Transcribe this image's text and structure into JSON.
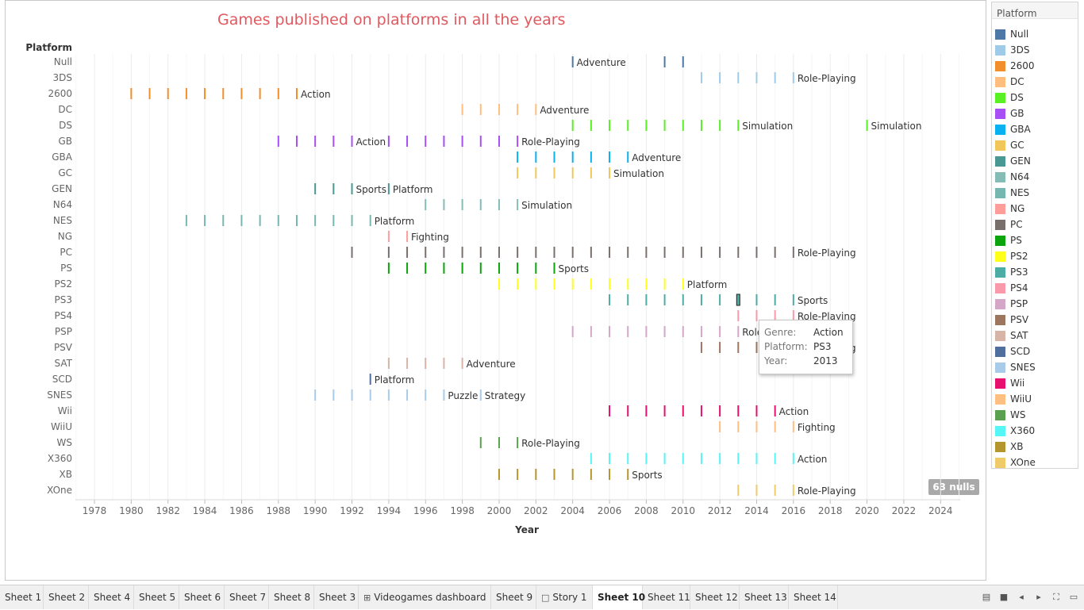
{
  "chart_data": {
    "type": "gantt-ticks",
    "title": "Games published on platforms in all the years",
    "ylabel": "Platform",
    "xlabel": "Year",
    "x_ticks": [
      1978,
      1980,
      1982,
      1984,
      1986,
      1988,
      1990,
      1992,
      1994,
      1996,
      1998,
      2000,
      2002,
      2004,
      2006,
      2008,
      2010,
      2012,
      2014,
      2016,
      2018,
      2020,
      2022,
      2024
    ],
    "xlim": [
      1977,
      2025
    ],
    "grid": "vertical",
    "platforms": [
      {
        "name": "Null",
        "color": "#4e79a7",
        "years": [
          2004,
          2009,
          2010
        ],
        "labels": [
          {
            "year": 2004,
            "text": "Adventure"
          }
        ]
      },
      {
        "name": "3DS",
        "color": "#a0cbe8",
        "years": [
          2011,
          2012,
          2013,
          2014,
          2015,
          2016
        ],
        "labels": [
          {
            "year": 2016,
            "text": "Role-Playing"
          }
        ]
      },
      {
        "name": "2600",
        "color": "#f28e2b",
        "years": [
          1980,
          1981,
          1982,
          1983,
          1984,
          1985,
          1986,
          1987,
          1988,
          1989
        ],
        "labels": [
          {
            "year": 1989,
            "text": "Action"
          }
        ]
      },
      {
        "name": "DC",
        "color": "#ffbe7d",
        "years": [
          1998,
          1999,
          2000,
          2001,
          2002
        ],
        "labels": [
          {
            "year": 2002,
            "text": "Adventure"
          }
        ]
      },
      {
        "name": "DS",
        "color": "#59f024",
        "years": [
          2004,
          2005,
          2006,
          2007,
          2008,
          2009,
          2010,
          2011,
          2012,
          2013,
          2020
        ],
        "labels": [
          {
            "year": 2013,
            "text": "Simulation"
          },
          {
            "year": 2020,
            "text": "Simulation"
          }
        ]
      },
      {
        "name": "GB",
        "color": "#a74ef5",
        "years": [
          1988,
          1989,
          1990,
          1991,
          1992,
          1994,
          1995,
          1996,
          1997,
          1998,
          1999,
          2000,
          2001
        ],
        "labels": [
          {
            "year": 1992,
            "text": "Action"
          },
          {
            "year": 2001,
            "text": "Role-Playing"
          }
        ]
      },
      {
        "name": "GBA",
        "color": "#0ab1f0",
        "years": [
          2001,
          2002,
          2003,
          2004,
          2005,
          2006,
          2007
        ],
        "labels": [
          {
            "year": 2007,
            "text": "Adventure"
          }
        ]
      },
      {
        "name": "GC",
        "color": "#f1c75a",
        "years": [
          2001,
          2002,
          2003,
          2004,
          2005,
          2006
        ],
        "labels": [
          {
            "year": 2006,
            "text": "Simulation"
          }
        ]
      },
      {
        "name": "GEN",
        "color": "#499894",
        "years": [
          1990,
          1991,
          1992,
          1994
        ],
        "labels": [
          {
            "year": 1992,
            "text": "Sports"
          },
          {
            "year": 1994,
            "text": "Platform"
          }
        ]
      },
      {
        "name": "N64",
        "color": "#86bcb6",
        "years": [
          1996,
          1997,
          1998,
          1999,
          2000,
          2001
        ],
        "labels": [
          {
            "year": 2001,
            "text": "Simulation"
          }
        ]
      },
      {
        "name": "NES",
        "color": "#76b7b2",
        "years": [
          1983,
          1984,
          1985,
          1986,
          1987,
          1988,
          1989,
          1990,
          1991,
          1992,
          1993
        ],
        "labels": [
          {
            "year": 1993,
            "text": "Platform"
          }
        ]
      },
      {
        "name": "NG",
        "color": "#ff9d9a",
        "years": [
          1994,
          1995
        ],
        "labels": [
          {
            "year": 1995,
            "text": "Fighting"
          }
        ]
      },
      {
        "name": "PC",
        "color": "#79706e",
        "years": [
          1992,
          1994,
          1995,
          1996,
          1997,
          1998,
          1999,
          2000,
          2001,
          2002,
          2003,
          2004,
          2005,
          2006,
          2007,
          2008,
          2009,
          2010,
          2011,
          2012,
          2013,
          2014,
          2015,
          2016
        ],
        "labels": [
          {
            "year": 2016,
            "text": "Role-Playing"
          }
        ]
      },
      {
        "name": "PS",
        "color": "#0ba40b",
        "years": [
          1994,
          1995,
          1996,
          1997,
          1998,
          1999,
          2000,
          2001,
          2002,
          2003
        ],
        "labels": [
          {
            "year": 2003,
            "text": "Sports"
          }
        ]
      },
      {
        "name": "PS2",
        "color": "#ffff1a",
        "years": [
          2000,
          2001,
          2002,
          2003,
          2004,
          2005,
          2006,
          2007,
          2008,
          2009,
          2010
        ],
        "labels": [
          {
            "year": 2010,
            "text": "Platform"
          }
        ]
      },
      {
        "name": "PS3",
        "color": "#4cada6",
        "years": [
          2006,
          2007,
          2008,
          2009,
          2010,
          2011,
          2012,
          2013,
          2014,
          2015,
          2016
        ],
        "labels": [
          {
            "year": 2016,
            "text": "Sports"
          }
        ]
      },
      {
        "name": "PS4",
        "color": "#f999a9",
        "years": [
          2013,
          2014,
          2015,
          2016
        ],
        "labels": [
          {
            "year": 2016,
            "text": "Role-Playing"
          }
        ]
      },
      {
        "name": "PSP",
        "color": "#d4a6c8",
        "years": [
          2004,
          2005,
          2006,
          2007,
          2008,
          2009,
          2010,
          2011,
          2012,
          2013
        ],
        "labels": [
          {
            "year": 2013,
            "text": "Role-Playing"
          }
        ]
      },
      {
        "name": "PSV",
        "color": "#9d7660",
        "years": [
          2011,
          2012,
          2013,
          2014,
          2015,
          2016
        ],
        "labels": [
          {
            "year": 2016,
            "text": "Role-Playing"
          }
        ]
      },
      {
        "name": "SAT",
        "color": "#d7b5a6",
        "years": [
          1994,
          1995,
          1996,
          1997,
          1998
        ],
        "labels": [
          {
            "year": 1998,
            "text": "Adventure"
          }
        ]
      },
      {
        "name": "SCD",
        "color": "#506e9e",
        "years": [
          1993
        ],
        "labels": [
          {
            "year": 1993,
            "text": "Platform"
          }
        ]
      },
      {
        "name": "SNES",
        "color": "#a8cbe9",
        "years": [
          1990,
          1991,
          1992,
          1993,
          1994,
          1995,
          1996,
          1997,
          1999
        ],
        "labels": [
          {
            "year": 1997,
            "text": "Puzzle"
          },
          {
            "year": 1999,
            "text": "Strategy"
          }
        ]
      },
      {
        "name": "Wii",
        "color": "#e8106e",
        "years": [
          2006,
          2007,
          2008,
          2009,
          2010,
          2011,
          2012,
          2013,
          2014,
          2015
        ],
        "labels": [
          {
            "year": 2015,
            "text": "Action"
          }
        ]
      },
      {
        "name": "WiiU",
        "color": "#ffbf80",
        "years": [
          2012,
          2013,
          2014,
          2015,
          2016
        ],
        "labels": [
          {
            "year": 2016,
            "text": "Fighting"
          }
        ]
      },
      {
        "name": "WS",
        "color": "#59a14f",
        "years": [
          1999,
          2000,
          2001
        ],
        "labels": [
          {
            "year": 2001,
            "text": "Role-Playing"
          }
        ]
      },
      {
        "name": "X360",
        "color": "#56f6f6",
        "years": [
          2005,
          2006,
          2007,
          2008,
          2009,
          2010,
          2011,
          2012,
          2013,
          2014,
          2015,
          2016
        ],
        "labels": [
          {
            "year": 2016,
            "text": "Action"
          }
        ]
      },
      {
        "name": "XB",
        "color": "#b5952d",
        "years": [
          2000,
          2001,
          2002,
          2003,
          2004,
          2005,
          2006,
          2007
        ],
        "labels": [
          {
            "year": 2007,
            "text": "Sports"
          }
        ]
      },
      {
        "name": "XOne",
        "color": "#f0cb6a",
        "years": [
          2013,
          2014,
          2015,
          2016
        ],
        "labels": [
          {
            "year": 2016,
            "text": "Role-Playing"
          }
        ]
      }
    ],
    "highlight": {
      "platform": "PS3",
      "year": 2013
    },
    "nulls_badge": "63 nulls"
  },
  "legend": {
    "title": "Platform"
  },
  "tooltip": {
    "rows": [
      {
        "key": "Genre:",
        "value": "Action"
      },
      {
        "key": "Platform:",
        "value": "PS3"
      },
      {
        "key": "Year:",
        "value": "2013"
      }
    ]
  },
  "tabs": [
    {
      "label": "Sheet 1"
    },
    {
      "label": "Sheet 2"
    },
    {
      "label": "Sheet 4"
    },
    {
      "label": "Sheet 5"
    },
    {
      "label": "Sheet 6"
    },
    {
      "label": "Sheet 7"
    },
    {
      "label": "Sheet 8"
    },
    {
      "label": "Sheet 3"
    },
    {
      "label": "Videogames dashboard",
      "icon": "grid-icon"
    },
    {
      "label": "Sheet 9"
    },
    {
      "label": "Story 1",
      "icon": "book-icon"
    },
    {
      "label": "Sheet 10",
      "active": true
    },
    {
      "label": "Sheet 11"
    },
    {
      "label": "Sheet 12"
    },
    {
      "label": "Sheet 13"
    },
    {
      "label": "Sheet 14"
    }
  ],
  "nav_icons": [
    "sheet-sorter-icon",
    "filmstrip-icon",
    "prev-sheet-icon",
    "next-sheet-icon",
    "fit-icon",
    "present-icon"
  ]
}
